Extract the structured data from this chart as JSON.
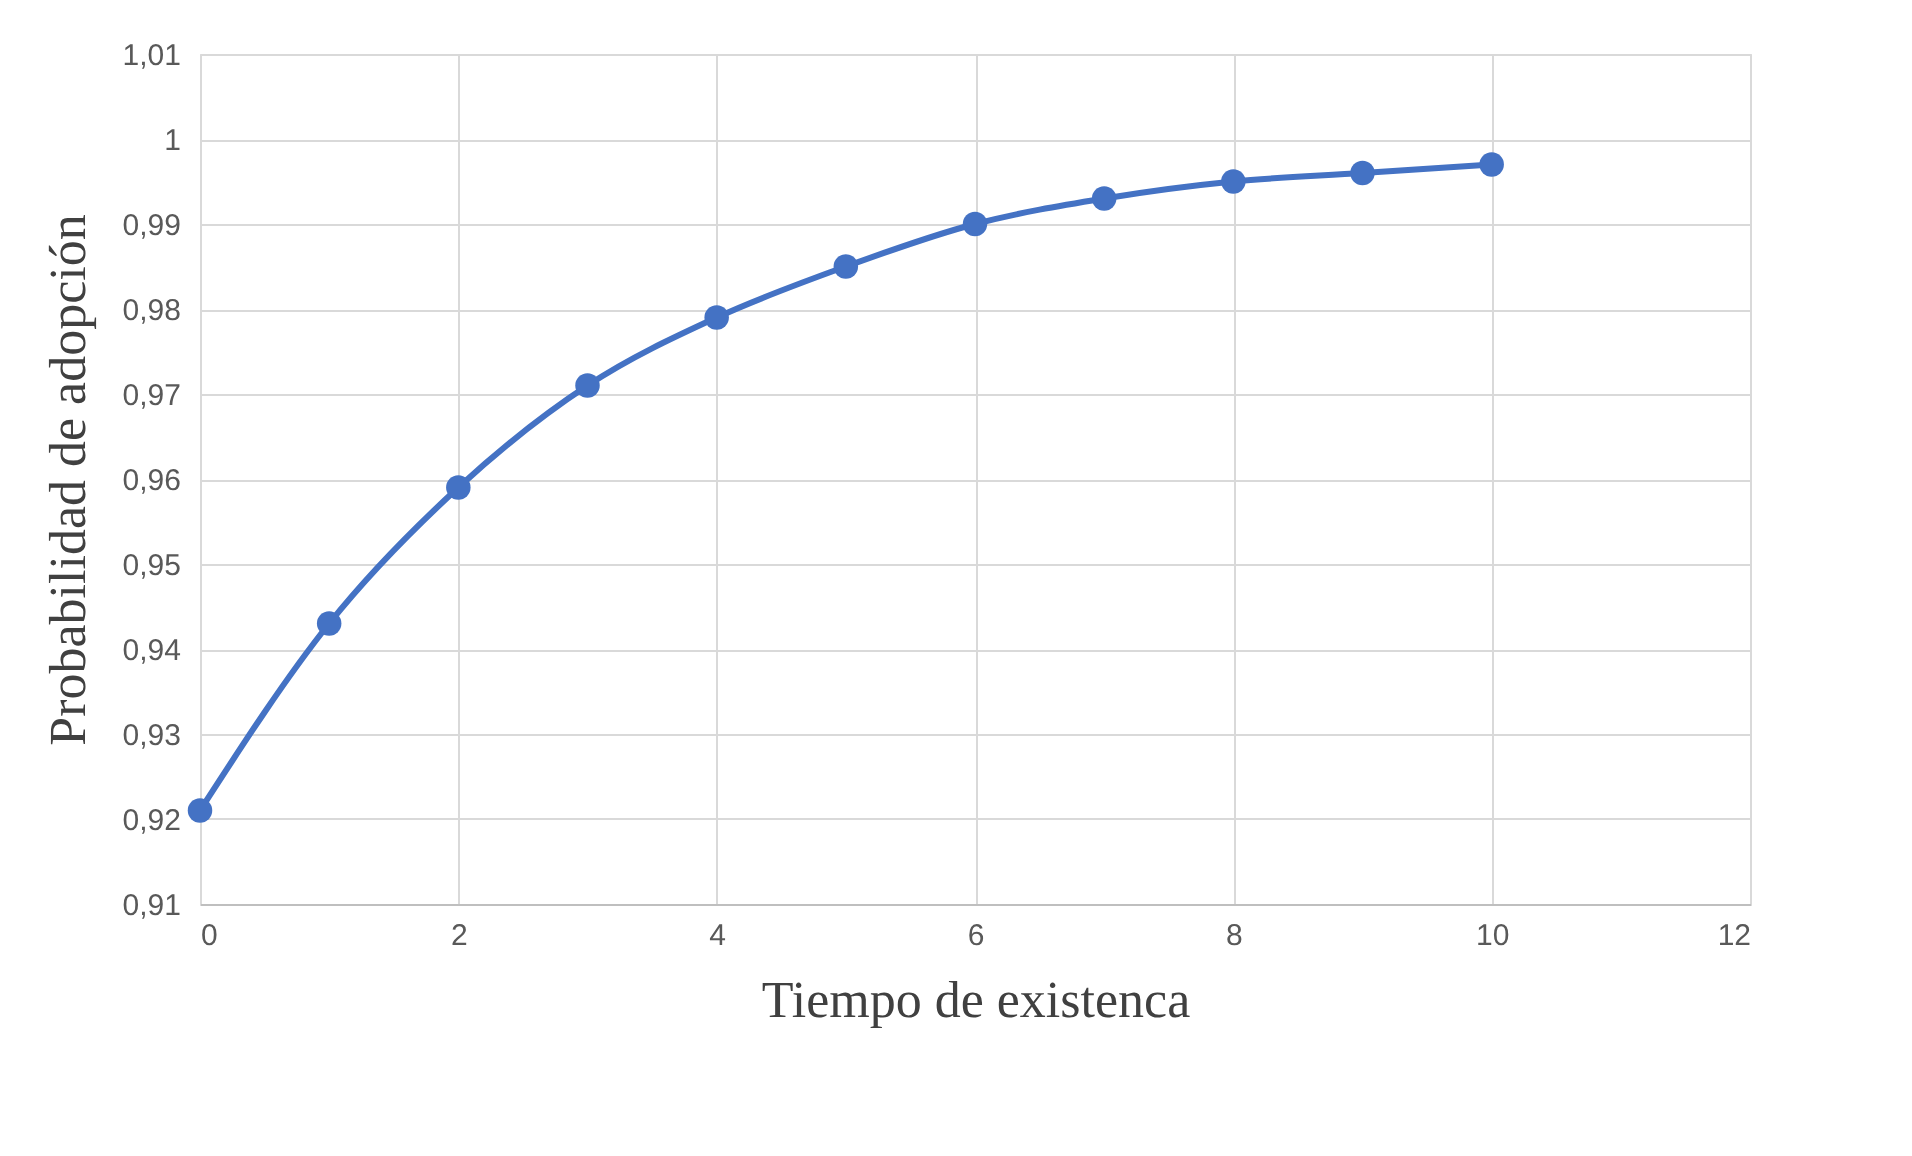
{
  "chart_data": {
    "type": "line",
    "xlabel": "Tiempo de existenca",
    "ylabel": "Probabilidad de adopción",
    "x": [
      0,
      1,
      2,
      3,
      4,
      5,
      6,
      7,
      8,
      9,
      10
    ],
    "series": [
      {
        "color": "#4472c4",
        "values": [
          0.921,
          0.943,
          0.959,
          0.971,
          0.979,
          0.985,
          0.99,
          0.993,
          0.995,
          0.996,
          0.997
        ]
      }
    ],
    "xlim": [
      0,
      12
    ],
    "xticks": [
      0,
      2,
      4,
      6,
      8,
      10,
      12
    ],
    "ylim": [
      0.91,
      1.01
    ],
    "yticks": [
      {
        "value": 0.91,
        "label": "0,91"
      },
      {
        "value": 0.92,
        "label": "0,92"
      },
      {
        "value": 0.93,
        "label": "0,93"
      },
      {
        "value": 0.94,
        "label": "0,94"
      },
      {
        "value": 0.95,
        "label": "0,95"
      },
      {
        "value": 0.96,
        "label": "0,96"
      },
      {
        "value": 0.97,
        "label": "0,97"
      },
      {
        "value": 0.98,
        "label": "0,98"
      },
      {
        "value": 0.99,
        "label": "0,99"
      },
      1,
      {
        "value": 1.01,
        "label": "1,01"
      }
    ],
    "grid": true,
    "marker": "circle",
    "line_style": "solid"
  }
}
